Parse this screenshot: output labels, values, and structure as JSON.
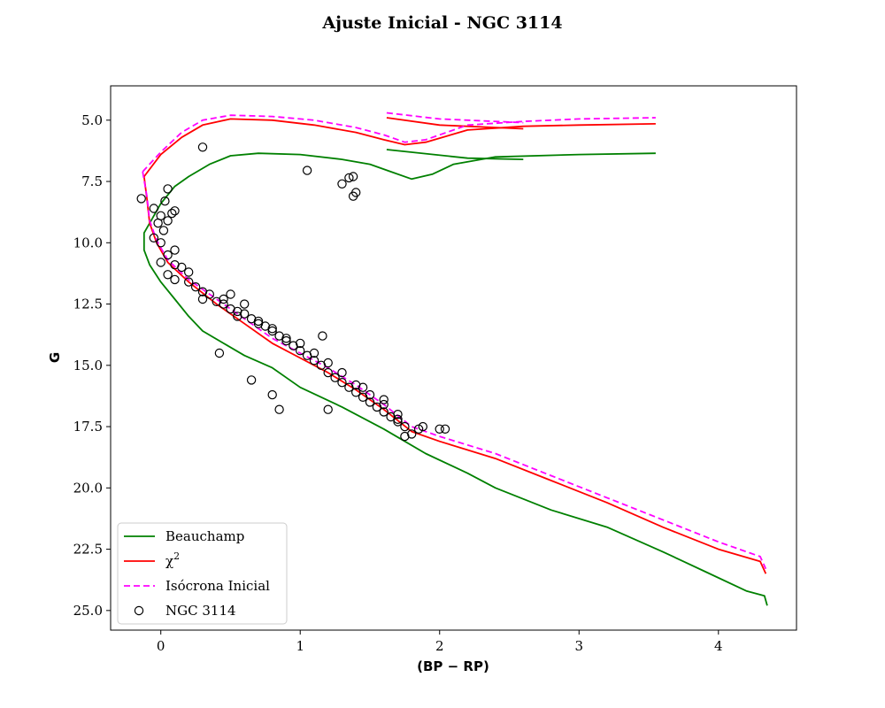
{
  "chart_data": {
    "type": "scatter",
    "title": "Ajuste Inicial - NGC 3114",
    "xlabel": "(BP − RP)",
    "ylabel": "G",
    "xlim": [
      -0.36,
      4.56
    ],
    "ylim": [
      25.8,
      3.6
    ],
    "y_inverted": true,
    "xticks": [
      0,
      1,
      2,
      3,
      4
    ],
    "yticks": [
      5.0,
      7.5,
      10.0,
      12.5,
      15.0,
      17.5,
      20.0,
      22.5,
      25.0
    ],
    "grid": false,
    "legend_position": "lower-left",
    "series": [
      {
        "name": "Beauchamp",
        "kind": "line",
        "color": "#008000",
        "dash": "solid",
        "segments": [
          [
            [
              -0.06,
              9.0
            ],
            [
              -0.12,
              9.6
            ],
            [
              -0.12,
              10.3
            ],
            [
              -0.08,
              10.9
            ],
            [
              0.0,
              11.6
            ],
            [
              0.1,
              12.3
            ],
            [
              0.2,
              13.0
            ],
            [
              0.3,
              13.6
            ],
            [
              0.45,
              14.1
            ],
            [
              0.6,
              14.6
            ],
            [
              0.8,
              15.1
            ],
            [
              0.9,
              15.5
            ],
            [
              1.0,
              15.9
            ],
            [
              1.3,
              16.7
            ],
            [
              1.6,
              17.6
            ],
            [
              1.9,
              18.6
            ],
            [
              2.2,
              19.4
            ],
            [
              2.4,
              20.0
            ],
            [
              2.8,
              20.9
            ],
            [
              3.2,
              21.6
            ],
            [
              3.6,
              22.6
            ],
            [
              3.9,
              23.4
            ],
            [
              4.2,
              24.2
            ],
            [
              4.33,
              24.4
            ],
            [
              4.35,
              24.8
            ]
          ],
          [
            [
              -0.06,
              9.0
            ],
            [
              0.0,
              8.4
            ],
            [
              0.1,
              7.7
            ],
            [
              0.2,
              7.3
            ],
            [
              0.35,
              6.8
            ],
            [
              0.5,
              6.45
            ],
            [
              0.7,
              6.35
            ],
            [
              1.0,
              6.4
            ],
            [
              1.3,
              6.6
            ],
            [
              1.5,
              6.8
            ],
            [
              1.65,
              7.1
            ],
            [
              1.8,
              7.4
            ],
            [
              1.95,
              7.2
            ],
            [
              2.1,
              6.8
            ],
            [
              2.4,
              6.5
            ],
            [
              3.0,
              6.4
            ],
            [
              3.55,
              6.35
            ]
          ],
          [
            [
              1.62,
              6.2
            ],
            [
              2.2,
              6.55
            ],
            [
              2.6,
              6.6
            ]
          ]
        ]
      },
      {
        "name": "χ²",
        "kind": "line",
        "color": "#ff0000",
        "dash": "solid",
        "segments": [
          [
            [
              -0.12,
              7.3
            ],
            [
              -0.1,
              8.2
            ],
            [
              -0.08,
              9.2
            ],
            [
              -0.03,
              10.0
            ],
            [
              0.05,
              10.8
            ],
            [
              0.2,
              11.6
            ],
            [
              0.4,
              12.5
            ],
            [
              0.6,
              13.3
            ],
            [
              0.8,
              14.1
            ],
            [
              1.0,
              14.7
            ],
            [
              1.2,
              15.3
            ],
            [
              1.4,
              16.0
            ],
            [
              1.6,
              16.8
            ],
            [
              1.8,
              17.7
            ],
            [
              2.0,
              18.1
            ],
            [
              2.4,
              18.8
            ],
            [
              2.8,
              19.7
            ],
            [
              3.2,
              20.6
            ],
            [
              3.6,
              21.6
            ],
            [
              4.0,
              22.5
            ],
            [
              4.3,
              23.0
            ],
            [
              4.34,
              23.5
            ]
          ],
          [
            [
              -0.12,
              7.3
            ],
            [
              0.0,
              6.4
            ],
            [
              0.15,
              5.7
            ],
            [
              0.3,
              5.2
            ],
            [
              0.5,
              4.95
            ],
            [
              0.8,
              5.0
            ],
            [
              1.1,
              5.2
            ],
            [
              1.4,
              5.5
            ],
            [
              1.6,
              5.8
            ],
            [
              1.75,
              6.0
            ],
            [
              1.9,
              5.9
            ],
            [
              2.2,
              5.4
            ],
            [
              2.6,
              5.25
            ],
            [
              3.0,
              5.2
            ],
            [
              3.55,
              5.15
            ]
          ],
          [
            [
              1.62,
              4.9
            ],
            [
              2.0,
              5.2
            ],
            [
              2.6,
              5.35
            ]
          ]
        ]
      },
      {
        "name": "Isócrona Inicial",
        "kind": "line",
        "color": "#ff00ff",
        "dash": "dashed",
        "segments": [
          [
            [
              -0.13,
              7.1
            ],
            [
              -0.1,
              8.1
            ],
            [
              -0.08,
              9.1
            ],
            [
              -0.03,
              9.9
            ],
            [
              0.05,
              10.7
            ],
            [
              0.2,
              11.5
            ],
            [
              0.4,
              12.3
            ],
            [
              0.6,
              13.1
            ],
            [
              0.8,
              13.9
            ],
            [
              1.0,
              14.5
            ],
            [
              1.2,
              15.1
            ],
            [
              1.4,
              15.8
            ],
            [
              1.6,
              16.6
            ],
            [
              1.8,
              17.5
            ],
            [
              2.0,
              17.9
            ],
            [
              2.4,
              18.6
            ],
            [
              2.8,
              19.5
            ],
            [
              3.2,
              20.4
            ],
            [
              3.6,
              21.3
            ],
            [
              4.0,
              22.2
            ],
            [
              4.3,
              22.8
            ],
            [
              4.34,
              23.3
            ]
          ],
          [
            [
              -0.13,
              7.1
            ],
            [
              0.0,
              6.3
            ],
            [
              0.15,
              5.5
            ],
            [
              0.3,
              5.0
            ],
            [
              0.5,
              4.8
            ],
            [
              0.8,
              4.85
            ],
            [
              1.1,
              5.0
            ],
            [
              1.4,
              5.3
            ],
            [
              1.6,
              5.6
            ],
            [
              1.75,
              5.9
            ],
            [
              1.9,
              5.8
            ],
            [
              2.2,
              5.2
            ],
            [
              2.6,
              5.05
            ],
            [
              3.0,
              4.95
            ],
            [
              3.55,
              4.9
            ]
          ],
          [
            [
              1.62,
              4.7
            ],
            [
              2.0,
              4.95
            ],
            [
              2.6,
              5.1
            ]
          ]
        ]
      },
      {
        "name": "NGC 3114",
        "kind": "scatter",
        "marker": "open-circle",
        "color": "#000000",
        "points": [
          [
            -0.14,
            8.2
          ],
          [
            -0.05,
            8.6
          ],
          [
            0.05,
            7.8
          ],
          [
            0.1,
            8.7
          ],
          [
            0.03,
            8.3
          ],
          [
            0.0,
            8.9
          ],
          [
            0.05,
            9.1
          ],
          [
            0.08,
            8.8
          ],
          [
            -0.02,
            9.2
          ],
          [
            0.02,
            9.5
          ],
          [
            -0.05,
            9.8
          ],
          [
            0.0,
            10.0
          ],
          [
            0.1,
            10.3
          ],
          [
            0.05,
            10.5
          ],
          [
            0.0,
            10.8
          ],
          [
            0.1,
            10.9
          ],
          [
            0.15,
            11.0
          ],
          [
            0.2,
            11.2
          ],
          [
            0.05,
            11.3
          ],
          [
            0.1,
            11.5
          ],
          [
            0.2,
            11.6
          ],
          [
            0.25,
            11.8
          ],
          [
            0.3,
            12.0
          ],
          [
            0.35,
            12.1
          ],
          [
            0.3,
            12.3
          ],
          [
            0.4,
            12.4
          ],
          [
            0.45,
            12.5
          ],
          [
            0.5,
            12.7
          ],
          [
            0.55,
            12.8
          ],
          [
            0.6,
            12.9
          ],
          [
            0.65,
            13.1
          ],
          [
            0.7,
            13.3
          ],
          [
            0.75,
            13.4
          ],
          [
            0.8,
            13.6
          ],
          [
            0.85,
            13.8
          ],
          [
            0.9,
            14.0
          ],
          [
            0.95,
            14.2
          ],
          [
            1.0,
            14.4
          ],
          [
            1.05,
            14.6
          ],
          [
            1.1,
            14.8
          ],
          [
            1.15,
            15.0
          ],
          [
            1.2,
            15.3
          ],
          [
            1.25,
            15.5
          ],
          [
            1.3,
            15.7
          ],
          [
            1.35,
            15.9
          ],
          [
            1.4,
            16.1
          ],
          [
            1.45,
            16.3
          ],
          [
            1.5,
            16.5
          ],
          [
            1.55,
            16.7
          ],
          [
            1.6,
            16.9
          ],
          [
            1.65,
            17.1
          ],
          [
            1.7,
            17.3
          ],
          [
            1.75,
            17.5
          ],
          [
            1.8,
            17.8
          ],
          [
            1.85,
            17.6
          ],
          [
            0.5,
            12.1
          ],
          [
            0.45,
            12.3
          ],
          [
            0.6,
            12.5
          ],
          [
            0.55,
            13.0
          ],
          [
            0.7,
            13.2
          ],
          [
            0.8,
            13.5
          ],
          [
            0.9,
            13.9
          ],
          [
            1.0,
            14.1
          ],
          [
            1.1,
            14.5
          ],
          [
            1.2,
            14.9
          ],
          [
            1.3,
            15.3
          ],
          [
            1.4,
            15.8
          ],
          [
            1.5,
            16.2
          ],
          [
            1.6,
            16.6
          ],
          [
            1.7,
            17.0
          ],
          [
            0.3,
            6.1
          ],
          [
            1.05,
            7.05
          ],
          [
            1.3,
            7.6
          ],
          [
            1.35,
            7.35
          ],
          [
            1.38,
            7.3
          ],
          [
            1.4,
            7.95
          ],
          [
            1.38,
            8.1
          ],
          [
            0.42,
            14.5
          ],
          [
            0.65,
            15.6
          ],
          [
            0.8,
            16.2
          ],
          [
            0.85,
            16.8
          ],
          [
            1.16,
            13.8
          ],
          [
            1.2,
            16.8
          ],
          [
            2.0,
            17.6
          ],
          [
            2.04,
            17.6
          ],
          [
            1.88,
            17.5
          ],
          [
            1.75,
            17.9
          ],
          [
            1.7,
            17.2
          ],
          [
            1.6,
            16.4
          ],
          [
            1.45,
            15.9
          ]
        ]
      }
    ]
  }
}
